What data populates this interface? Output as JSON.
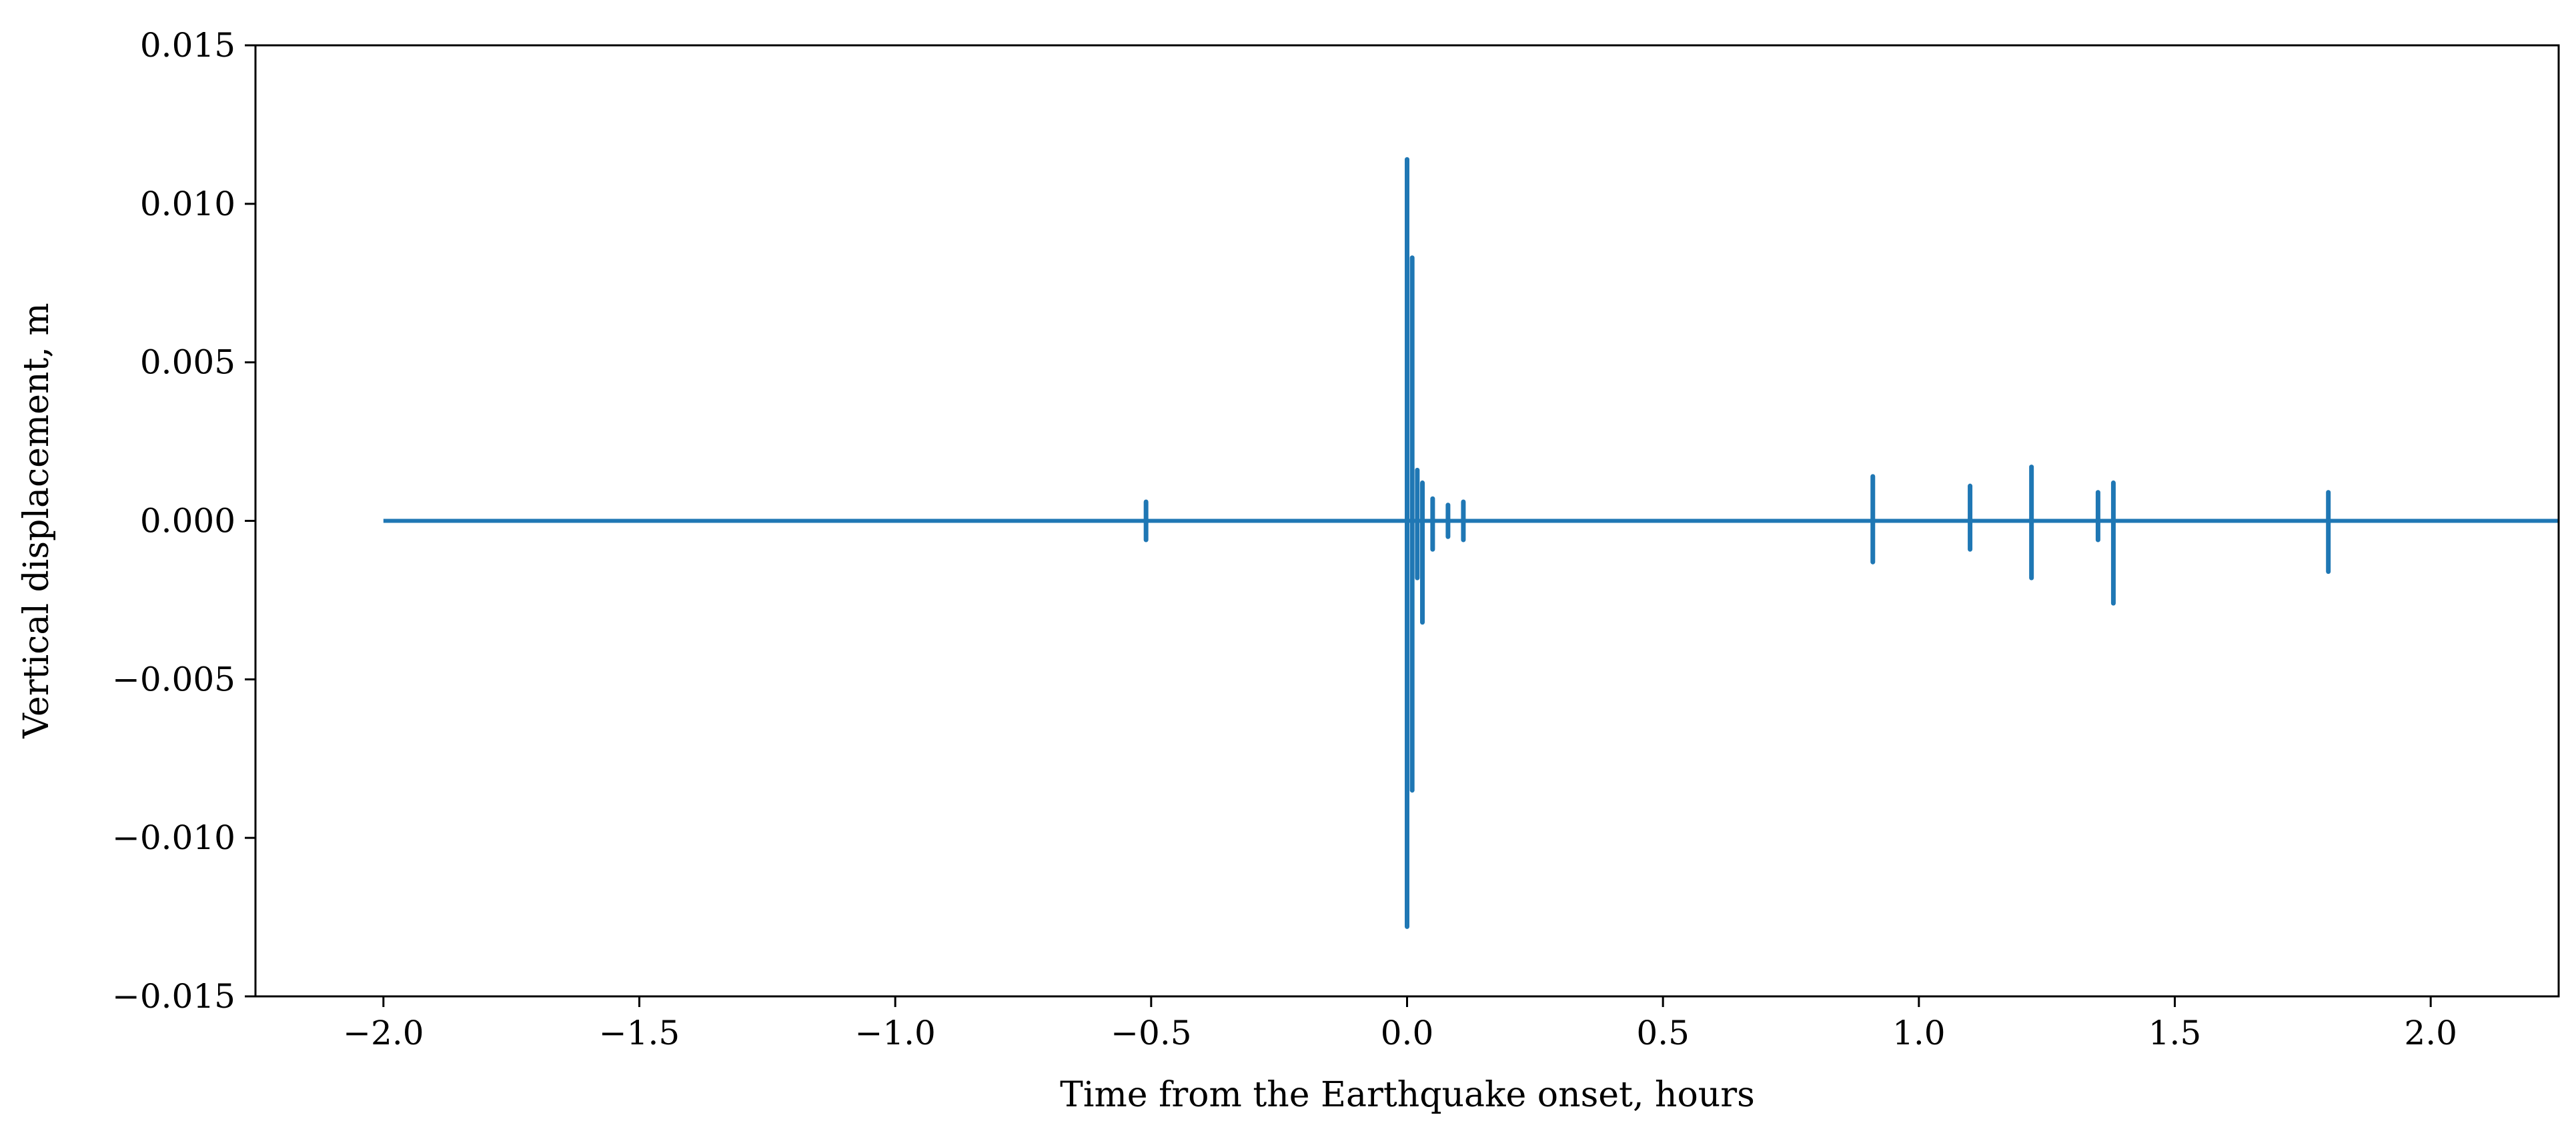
{
  "chart_data": {
    "type": "line",
    "title": "",
    "xlabel": "Time from the Earthquake onset, hours",
    "ylabel": "Vertical displacement, m",
    "xlim": [
      -2.25,
      2.25
    ],
    "ylim": [
      -0.015,
      0.015
    ],
    "grid": false,
    "xticks": [
      -2.0,
      -1.5,
      -1.0,
      -0.5,
      0.0,
      0.5,
      1.0,
      1.5,
      2.0
    ],
    "xtick_labels": [
      "−2.0",
      "−1.5",
      "−1.0",
      "−0.5",
      "0.0",
      "0.5",
      "1.0",
      "1.5",
      "2.0"
    ],
    "yticks": [
      -0.015,
      -0.01,
      -0.005,
      0.0,
      0.005,
      0.01,
      0.015
    ],
    "ytick_labels": [
      "−0.015",
      "−0.010",
      "−0.005",
      "0.000",
      "0.005",
      "0.010",
      "0.015"
    ],
    "series": [
      {
        "name": "",
        "color": "#1f77b4",
        "x_start": -2.0,
        "x_end": 2.25,
        "baseline": 0.0,
        "bursts": [
          {
            "x": -0.51,
            "max": 0.0006,
            "min": -0.0006
          },
          {
            "x": 0.0,
            "max": 0.0114,
            "min": -0.0128
          },
          {
            "x": 0.01,
            "max": 0.0083,
            "min": -0.0085
          },
          {
            "x": 0.02,
            "max": 0.0016,
            "min": -0.0018
          },
          {
            "x": 0.03,
            "max": 0.0012,
            "min": -0.0032
          },
          {
            "x": 0.05,
            "max": 0.0007,
            "min": -0.0009
          },
          {
            "x": 0.08,
            "max": 0.0005,
            "min": -0.0005
          },
          {
            "x": 0.11,
            "max": 0.0006,
            "min": -0.0006
          },
          {
            "x": 0.91,
            "max": 0.0014,
            "min": -0.0013
          },
          {
            "x": 1.1,
            "max": 0.0011,
            "min": -0.0009
          },
          {
            "x": 1.22,
            "max": 0.0017,
            "min": -0.0018
          },
          {
            "x": 1.35,
            "max": 0.0009,
            "min": -0.0006
          },
          {
            "x": 1.38,
            "max": 0.0012,
            "min": -0.0026
          },
          {
            "x": 1.8,
            "max": 0.0009,
            "min": -0.0016
          }
        ]
      }
    ]
  }
}
